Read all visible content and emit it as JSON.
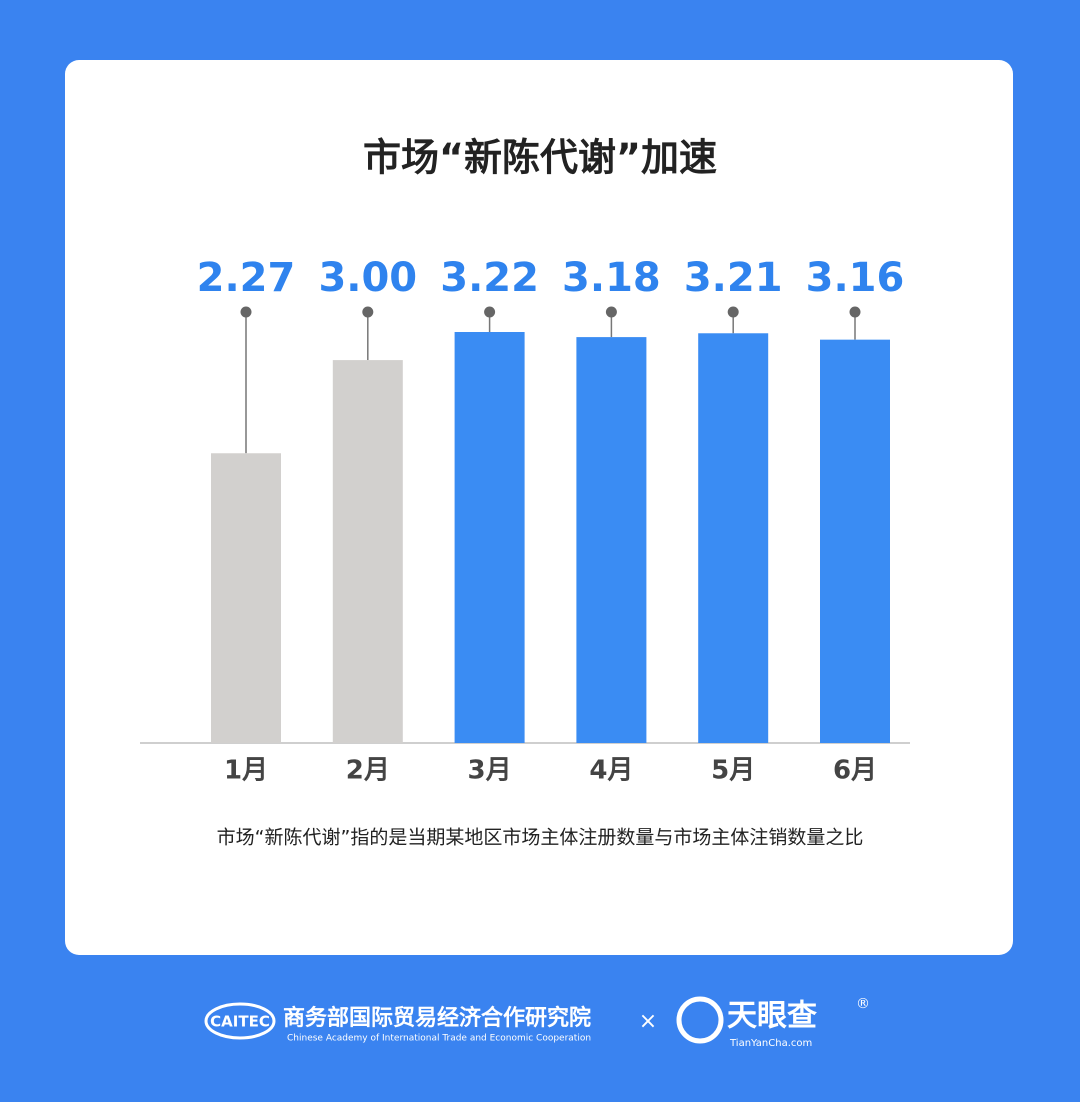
{
  "chart_data": {
    "type": "bar",
    "title": "市场“新陈代谢”加速",
    "categories": [
      "1月",
      "2月",
      "3月",
      "4月",
      "5月",
      "6月"
    ],
    "values": [
      2.27,
      3.0,
      3.22,
      3.18,
      3.21,
      3.16
    ],
    "value_labels": [
      "2.27",
      "3.00",
      "3.22",
      "3.18",
      "3.21",
      "3.16"
    ],
    "colors": [
      "#d2d0ce",
      "#d2d0ce",
      "#3a8cf3",
      "#3a8cf3",
      "#3a8cf3",
      "#3a8cf3"
    ],
    "note": "市场“新陈代谢”指的是当期某地区市场主体注册数量与市场主体注销数量之比"
  },
  "footer": {
    "logo1_mark": "CAITEC",
    "logo1_name": "商务部国际贸易经济合作研究院",
    "logo1_english": "Chinese Academy of International Trade and Economic Cooperation",
    "separator": "×",
    "logo2_name": "天眼查",
    "logo2_url": "TianYanCha.com",
    "logo2_reg": "®"
  }
}
